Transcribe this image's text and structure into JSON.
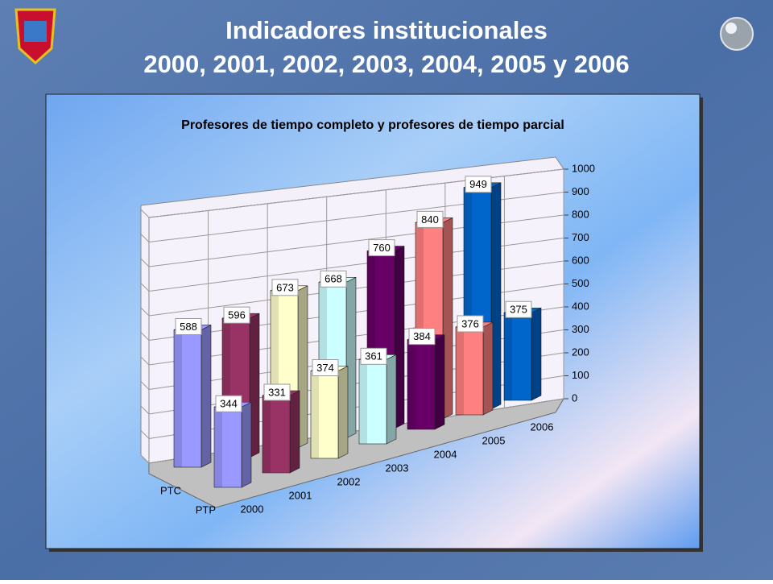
{
  "slide": {
    "title": "Indicadores institucionales",
    "subtitle": "2000, 2001, 2002, 2003, 2004, 2005 y 2006"
  },
  "chart_data": {
    "type": "bar3d",
    "title": "Profesores de tiempo completo y profesores de tiempo parcial",
    "categories": [
      "2000",
      "2001",
      "2002",
      "2003",
      "2004",
      "2005",
      "2006"
    ],
    "colors": [
      "#9999ff",
      "#993366",
      "#ffffcc",
      "#ccffff",
      "#660066",
      "#ff8080",
      "#0066cc"
    ],
    "series": [
      {
        "name": "PTC",
        "values": [
          588,
          596,
          673,
          668,
          760,
          840,
          949
        ]
      },
      {
        "name": "PTP",
        "values": [
          344,
          331,
          374,
          361,
          384,
          376,
          375
        ]
      }
    ],
    "ylim": [
      0,
      1000
    ],
    "yticks": [
      0,
      100,
      200,
      300,
      400,
      500,
      600,
      700,
      800,
      900,
      1000
    ],
    "grid": true
  }
}
